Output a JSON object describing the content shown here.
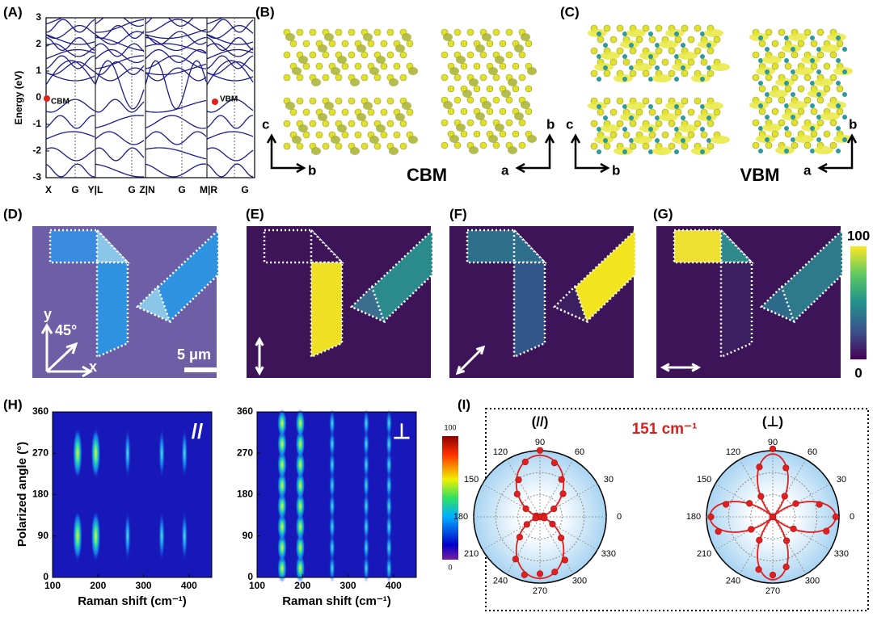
{
  "a": {
    "label": "(A)",
    "ylabel": "Energy (eV)",
    "ylim": [
      -3,
      3
    ],
    "yticks": [
      -3,
      -2,
      -1,
      0,
      1,
      2,
      3
    ],
    "kpoints": [
      "X",
      "G",
      "Y|L",
      "G",
      "Z|N",
      "G",
      "M|R",
      "G"
    ],
    "cbm": "CBM",
    "vbm": "VBM"
  },
  "b": {
    "label": "(B)",
    "axes": [
      "c",
      "b",
      "b",
      "a"
    ],
    "state": "CBM"
  },
  "c": {
    "label": "(C)",
    "axes": [
      "c",
      "b",
      "b",
      "a"
    ],
    "state": "VBM"
  },
  "d": {
    "label": "(D)",
    "axis_y": "y",
    "axis_x": "x",
    "angle": "45°",
    "scale_bar": "5 μm"
  },
  "e": {
    "label": "(E)"
  },
  "f": {
    "label": "(F)"
  },
  "g": {
    "label": "(G)",
    "colorbar_ticks": [
      100,
      0
    ]
  },
  "h": {
    "label": "(H)",
    "ylabel": "Polarized angle (°)",
    "xlabel": "Raman shift (cm⁻¹)",
    "xlim": [
      100,
      450
    ],
    "xticks": [
      100,
      200,
      300,
      400
    ],
    "ylim": [
      0,
      360
    ],
    "yticks": [
      0,
      90,
      180,
      270,
      360
    ],
    "colorbar_ticks": [
      100,
      0
    ],
    "configs": [
      "//",
      "⊥"
    ]
  },
  "i": {
    "label": "(I)",
    "title": "151 cm⁻¹",
    "configs": [
      "(//)",
      "(⊥)"
    ],
    "angles": [
      0,
      30,
      60,
      90,
      120,
      150,
      180,
      210,
      240,
      270,
      300,
      330
    ]
  }
}
